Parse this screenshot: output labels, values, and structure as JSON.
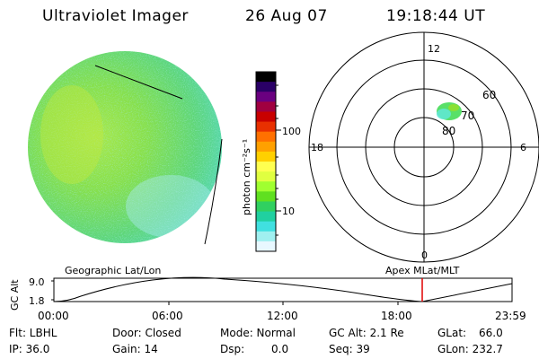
{
  "header": {
    "instrument": "Ultraviolet Imager",
    "date": "26 Aug 07",
    "time": "19:18:44 UT"
  },
  "colorbar": {
    "label": "photon cm⁻²s⁻¹",
    "ticks": [
      "100",
      "10"
    ],
    "colors": [
      "#000000",
      "#2a0066",
      "#6a0080",
      "#a00040",
      "#c80000",
      "#e83000",
      "#ff7000",
      "#ffa000",
      "#ffd000",
      "#ffff50",
      "#e0ff40",
      "#a0ff30",
      "#60e020",
      "#30d060",
      "#20d0a0",
      "#40e0e0",
      "#a0f0f0",
      "#e8f8ff"
    ]
  },
  "polar": {
    "mlt_labels": {
      "top": "12",
      "bottom": "0",
      "left": "18",
      "right": "6"
    },
    "lat_labels": [
      "60",
      "70",
      "80"
    ]
  },
  "timeline": {
    "left_label": "Geographic Lat/Lon",
    "right_label": "Apex MLat/MLT",
    "yaxis_label": "GC Alt",
    "ytick_top": "9.0",
    "ytick_bottom": "1.8",
    "xticks": [
      "00:00",
      "06:00",
      "12:00",
      "18:00",
      "23:59"
    ],
    "marker_color": "#e00000"
  },
  "info": {
    "flt": "Flt: LBHL",
    "ip": "IP: 36.0",
    "door": "Door: Closed",
    "gain": "Gain: 14",
    "mode": "Mode: Normal",
    "dsp": "Dsp:",
    "dsp_val": "0.0",
    "gcalt": "GC Alt: 2.1 Re",
    "seq": "Seq: 39",
    "glat": "GLat:",
    "glat_val": "66.0",
    "glon": "GLon: 232.7"
  }
}
